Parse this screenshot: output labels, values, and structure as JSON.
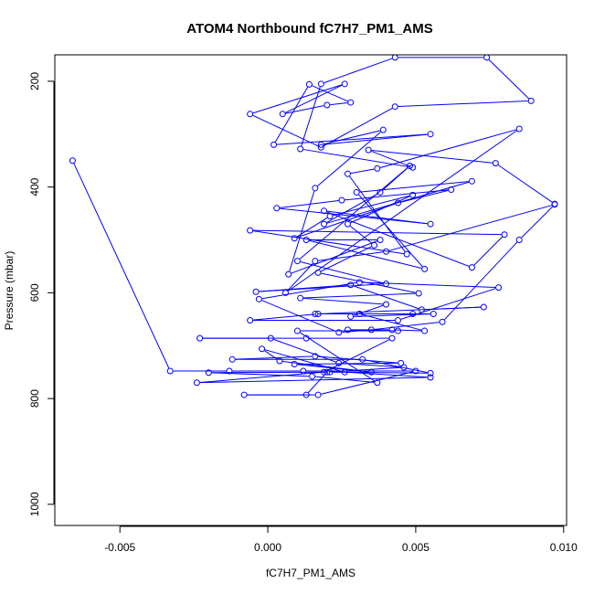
{
  "chart_data": {
    "type": "line",
    "title": "ATOM4 Northbound fC7H7_PM1_AMS",
    "xlabel": "fC7H7_PM1_AMS",
    "ylabel": "Pressure (mbar)",
    "xlim": [
      -0.0072,
      0.0101
    ],
    "ylim": [
      1040,
      150
    ],
    "y_inverted": true,
    "x_ticks": [
      -0.005,
      0.0,
      0.005,
      0.01
    ],
    "x_tick_labels": [
      "-0.005",
      "0.000",
      "0.005",
      "0.010"
    ],
    "y_ticks": [
      200,
      400,
      600,
      800,
      1000
    ],
    "y_tick_labels": [
      "200",
      "400",
      "600",
      "800",
      "1000"
    ],
    "grid": false,
    "markers": "open-circle",
    "color": "#0000ff",
    "series": [
      {
        "points": [
          [
            -0.0066,
            350
          ],
          [
            -0.0033,
            748
          ],
          [
            -0.0013,
            748
          ],
          [
            0.0012,
            748
          ],
          [
            0.005,
            748
          ],
          [
            0.0017,
            793
          ],
          [
            -0.0008,
            793
          ],
          [
            0.0013,
            793
          ],
          [
            0.002,
            750
          ],
          [
            0.0046,
            741
          ],
          [
            0.0024,
            733
          ],
          [
            0.0001,
            686
          ],
          [
            -0.0023,
            686
          ],
          [
            0.0013,
            686
          ],
          [
            0.0042,
            686
          ],
          [
            0.0019,
            750
          ],
          [
            -0.0024,
            770
          ],
          [
            0.0055,
            760
          ],
          [
            0.0026,
            750
          ],
          [
            -0.0002,
            706
          ],
          [
            0.0004,
            729
          ],
          [
            0.0035,
            750
          ],
          [
            0.0009,
            735
          ],
          [
            0.0045,
            733
          ],
          [
            0.0016,
            720
          ],
          [
            -0.0012,
            726
          ],
          [
            0.0032,
            726
          ],
          [
            0.0055,
            752
          ],
          [
            0.0021,
            750
          ],
          [
            -0.002,
            751
          ],
          [
            0.0015,
            758
          ],
          [
            0.0037,
            770
          ],
          [
            0.001,
            672
          ],
          [
            0.0044,
            672
          ],
          [
            0.0027,
            670
          ],
          [
            0.0042,
            670
          ],
          [
            0.0053,
            672
          ],
          [
            0.0031,
            640
          ],
          [
            0.0049,
            640
          ],
          [
            0.0016,
            640
          ],
          [
            0.0056,
            640
          ],
          [
            0.0028,
            645
          ],
          [
            0.004,
            622
          ],
          [
            0.0011,
            610
          ],
          [
            0.0051,
            601
          ],
          [
            0.0017,
            562
          ],
          [
            0.0036,
            510
          ],
          [
            0.0027,
            470
          ],
          [
            0.0049,
            415
          ],
          [
            0.0021,
            455
          ],
          [
            0.0009,
            497
          ],
          [
            0.0044,
            430
          ],
          [
            0.0062,
            405
          ],
          [
            0.0025,
            425
          ],
          [
            0.0003,
            440
          ],
          [
            0.0055,
            470
          ],
          [
            0.0019,
            445
          ],
          [
            0.0069,
            552
          ],
          [
            0.008,
            490
          ],
          [
            -0.0006,
            482
          ],
          [
            0.0047,
            527
          ],
          [
            0.0027,
            375
          ],
          [
            0.0037,
            365
          ],
          [
            0.0085,
            290
          ],
          [
            0.0006,
            600
          ],
          [
            0.0016,
            540
          ],
          [
            0.004,
            522
          ],
          [
            0.0097,
            433
          ],
          [
            0.0085,
            500
          ],
          [
            0.0059,
            655
          ],
          [
            0.0035,
            670
          ],
          [
            0.0024,
            675
          ],
          [
            -0.0003,
            612
          ],
          [
            0.0031,
            580
          ],
          [
            0.0078,
            590
          ],
          [
            0.0044,
            652
          ],
          [
            -0.0006,
            652
          ],
          [
            0.0017,
            640
          ],
          [
            0.0073,
            627
          ],
          [
            0.0052,
            632
          ],
          [
            0.0028,
            585
          ],
          [
            -0.0004,
            598
          ],
          [
            0.004,
            583
          ],
          [
            0.001,
            540
          ],
          [
            0.0048,
            360
          ],
          [
            0.0038,
            410
          ],
          [
            0.0019,
            470
          ],
          [
            0.0069,
            389
          ],
          [
            0.003,
            410
          ],
          [
            0.0053,
            555
          ],
          [
            0.0013,
            500
          ],
          [
            0.0038,
            500
          ],
          [
            0.0007,
            565
          ],
          [
            0.0016,
            402
          ],
          [
            0.0039,
            292
          ],
          [
            0.0018,
            320
          ],
          [
            0.0055,
            300
          ],
          [
            0.0002,
            320
          ],
          [
            0.0014,
            206
          ],
          [
            0.0028,
            240
          ],
          [
            0.002,
            245
          ],
          [
            0.0005,
            262
          ],
          [
            0.0026,
            205
          ],
          [
            -0.0006,
            262
          ],
          [
            0.0018,
            325
          ],
          [
            0.0043,
            248
          ],
          [
            0.0089,
            237
          ],
          [
            0.0074,
            155
          ],
          [
            0.0043,
            155
          ],
          [
            0.0018,
            205
          ],
          [
            0.0011,
            328
          ],
          [
            0.0049,
            363
          ],
          [
            0.0034,
            330
          ],
          [
            0.0077,
            355
          ],
          [
            0.0097,
            432
          ]
        ]
      }
    ]
  }
}
